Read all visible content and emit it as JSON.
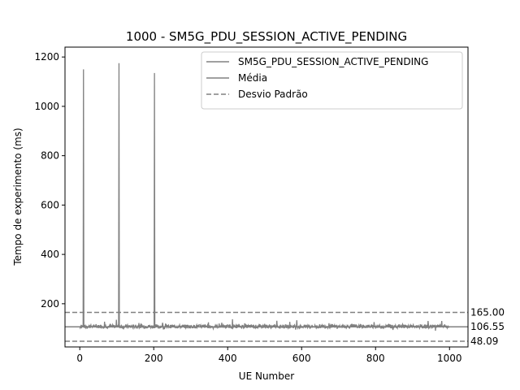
{
  "chart_data": {
    "type": "line",
    "title": "1000 - SM5G_PDU_SESSION_ACTIVE_PENDING",
    "xlabel": "UE Number",
    "ylabel": "Tempo de experimento (ms)",
    "xlim": [
      -40,
      1050
    ],
    "ylim": [
      25,
      1240
    ],
    "x_ticks": [
      0,
      200,
      400,
      600,
      800,
      1000
    ],
    "y_ticks": [
      200,
      400,
      600,
      800,
      1000,
      1200
    ],
    "grid": false,
    "legend_position": "top-right",
    "n_points": 1000,
    "baseline": 108,
    "spikes": [
      {
        "x": 10,
        "y": 1150
      },
      {
        "x": 106,
        "y": 1175
      },
      {
        "x": 202,
        "y": 1135
      }
    ],
    "series": [
      {
        "name": "SM5G_PDU_SESSION_ACTIVE_PENDING",
        "color": "#808080",
        "style": "solid"
      }
    ],
    "hlines": [
      {
        "name": "Média",
        "value": 106.55,
        "label": "106.55",
        "color": "#808080",
        "style": "solid"
      },
      {
        "name": "Desvio Padrão",
        "value": 165.0,
        "label": "165.00",
        "color": "#808080",
        "style": "dashed"
      },
      {
        "name": "Desvio Padrão",
        "value": 48.09,
        "label": "48.09",
        "color": "#808080",
        "style": "dashed"
      }
    ],
    "legend": [
      {
        "label": "SM5G_PDU_SESSION_ACTIVE_PENDING",
        "style": "solid"
      },
      {
        "label": "Média",
        "style": "solid"
      },
      {
        "label": "Desvio Padrão",
        "style": "dashed"
      }
    ]
  }
}
